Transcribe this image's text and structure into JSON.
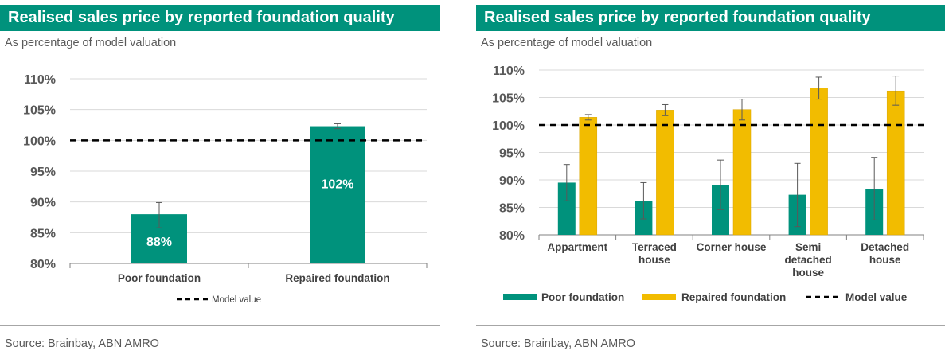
{
  "colors": {
    "poor": "#00927c",
    "repaired": "#f2bc00",
    "title_bg": "#00927c",
    "grid": "#d9d9d9",
    "model_line": "#000000"
  },
  "left": {
    "title": "Realised sales price by reported foundation quality",
    "subtitle": "As percentage of model valuation",
    "source": "Source: Brainbay, ABN AMRO",
    "legend": {
      "model_value": "Model value"
    }
  },
  "right": {
    "title": "Realised sales price by reported foundation quality",
    "subtitle": "As percentage of model valuation",
    "source": "Source: Brainbay, ABN AMRO",
    "legend": {
      "poor": "Poor foundation",
      "repaired": "Repaired foundation",
      "model_value": "Model value"
    }
  },
  "chart_data": [
    {
      "type": "bar",
      "categories": [
        "Poor foundation",
        "Repaired foundation"
      ],
      "values": [
        88,
        102.3
      ],
      "data_labels": [
        "88%",
        "102%"
      ],
      "error_bars": [
        [
          85.8,
          89.9
        ],
        [
          101.9,
          102.7
        ]
      ],
      "model_value": 100,
      "ylim": [
        80,
        110
      ],
      "yticks": [
        "80%",
        "85%",
        "90%",
        "95%",
        "100%",
        "105%",
        "110%"
      ],
      "grid": true,
      "legend": "bottom-center"
    },
    {
      "type": "bar",
      "categories": [
        "Appartment",
        "Terraced house",
        "Corner house",
        "Semi detached house",
        "Detached house"
      ],
      "category_lines": [
        [
          "Appartment"
        ],
        [
          "Terraced",
          "house"
        ],
        [
          "Corner house"
        ],
        [
          "Semi",
          "detached",
          "house"
        ],
        [
          "Detached",
          "house"
        ]
      ],
      "series": [
        {
          "name": "Poor foundation",
          "values": [
            89.5,
            86.2,
            89.1,
            87.3,
            88.4
          ],
          "error_bars": [
            [
              86.2,
              92.8
            ],
            [
              82.9,
              89.5
            ],
            [
              84.6,
              93.6
            ],
            [
              81.5,
              93.0
            ],
            [
              82.7,
              94.1
            ]
          ]
        },
        {
          "name": "Repaired foundation",
          "values": [
            101.4,
            102.7,
            102.8,
            106.7,
            106.2
          ],
          "error_bars": [
            [
              100.9,
              101.9
            ],
            [
              101.7,
              103.7
            ],
            [
              100.9,
              104.7
            ],
            [
              104.7,
              108.7
            ],
            [
              103.6,
              108.9
            ]
          ]
        }
      ],
      "model_value": 100,
      "ylim": [
        80,
        110
      ],
      "yticks": [
        "80%",
        "85%",
        "90%",
        "95%",
        "100%",
        "105%",
        "110%"
      ],
      "grid": true,
      "legend": "bottom"
    }
  ]
}
